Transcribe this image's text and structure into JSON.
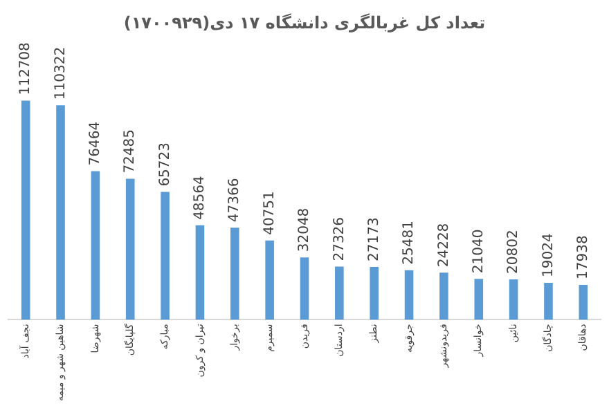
{
  "chart_data": {
    "type": "bar",
    "title": "(۱۷۰۰۹۲۹)تعداد کل غربالگری دانشگاه ۱۷ دی",
    "categories": [
      "نجف آباد",
      "شاهین شهر و میمه",
      "شهرضا",
      "گلپایگان",
      "مبارکه",
      "تیران و کرون",
      "برخوار",
      "سمیرم",
      "فریدن",
      "اردستان",
      "نطنز",
      "جرقویه",
      "فریدونشهر",
      "خوانسار",
      "نائین",
      "چادگان",
      "دهاقان"
    ],
    "values": [
      112708,
      110322,
      76464,
      72485,
      65723,
      48564,
      47366,
      40751,
      32048,
      27326,
      27173,
      25481,
      24228,
      21040,
      20802,
      19024,
      17938
    ],
    "color": "#5b9bd5",
    "data_labels": true,
    "grid": false,
    "legend": false
  }
}
